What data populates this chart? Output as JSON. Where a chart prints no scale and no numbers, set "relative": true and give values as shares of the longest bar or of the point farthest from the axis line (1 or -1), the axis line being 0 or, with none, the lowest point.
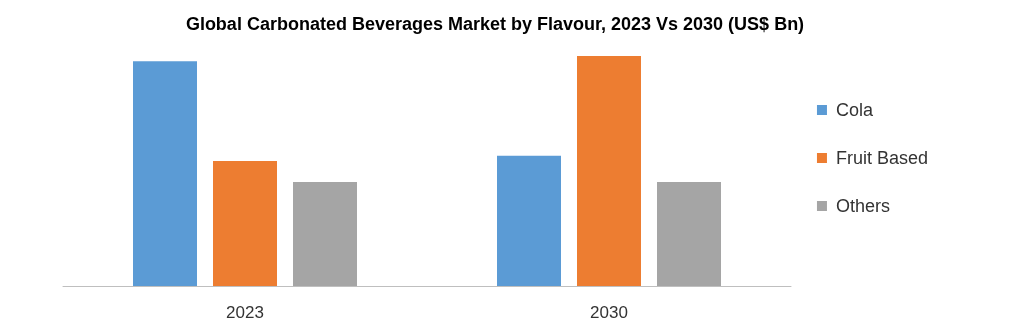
{
  "chart_data": {
    "type": "bar",
    "title": "Global Carbonated Beverages Market by Flavour, 2023 Vs 2030 (US$ Bn)",
    "categories": [
      "2023",
      "2030"
    ],
    "relative": true,
    "legend": "right",
    "series": [
      {
        "name": "Cola",
        "color": "#5b9bd5",
        "values": [
          0.977,
          0.566
        ]
      },
      {
        "name": "Fruit Based",
        "color": "#ed7d31",
        "values": [
          0.543,
          1
        ]
      },
      {
        "name": "Others",
        "color": "#a5a5a5",
        "values": [
          0.452,
          0.452
        ]
      }
    ]
  }
}
